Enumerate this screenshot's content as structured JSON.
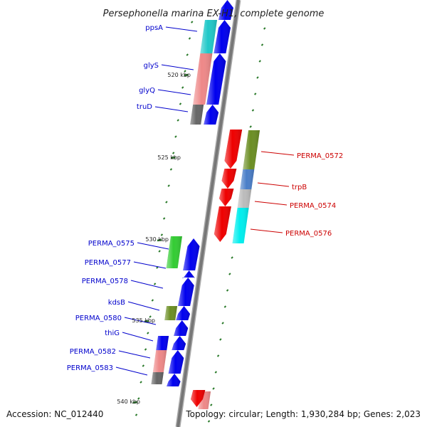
{
  "title": "Persephonella marina EX-H1, complete genome",
  "footer": {
    "accession": "Accession: NC_012440",
    "topology": "Topology: circular; Length: 1,930,284 bp; Genes: 2,023"
  },
  "colors": {
    "forward_label": "#0000cc",
    "reverse_label": "#cc0000",
    "backbone": "#888888",
    "tick": "#2a7a2a"
  },
  "kbp_markers": [
    {
      "label": "520 kbp",
      "kbp": 520
    },
    {
      "label": "525 kbp",
      "kbp": 525
    },
    {
      "label": "530 kbp",
      "kbp": 530
    },
    {
      "label": "535 kbp",
      "kbp": 535
    },
    {
      "label": "540 kbp",
      "kbp": 540
    }
  ],
  "genes": [
    {
      "name": "ppsA",
      "strand": "forward"
    },
    {
      "name": "glyS",
      "strand": "forward"
    },
    {
      "name": "glyQ",
      "strand": "forward"
    },
    {
      "name": "truD",
      "strand": "forward"
    },
    {
      "name": "PERMA_0572",
      "strand": "reverse"
    },
    {
      "name": "trpB",
      "strand": "reverse"
    },
    {
      "name": "PERMA_0574",
      "strand": "reverse"
    },
    {
      "name": "PERMA_0576",
      "strand": "reverse"
    },
    {
      "name": "PERMA_0575",
      "strand": "forward"
    },
    {
      "name": "PERMA_0577",
      "strand": "forward"
    },
    {
      "name": "PERMA_0578",
      "strand": "forward"
    },
    {
      "name": "kdsB",
      "strand": "forward"
    },
    {
      "name": "PERMA_0580",
      "strand": "forward"
    },
    {
      "name": "thiG",
      "strand": "forward"
    },
    {
      "name": "PERMA_0582",
      "strand": "forward"
    },
    {
      "name": "PERMA_0583",
      "strand": "forward"
    }
  ]
}
